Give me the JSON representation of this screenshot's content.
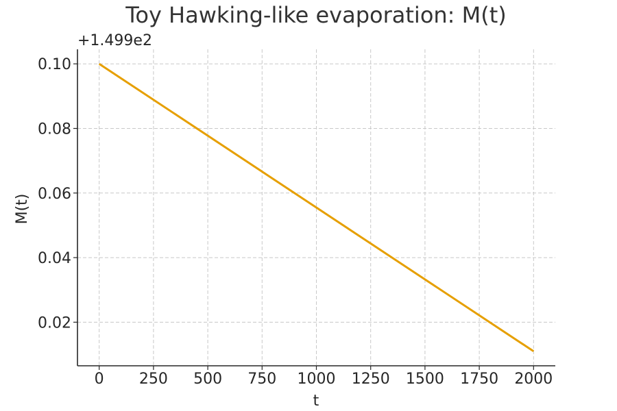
{
  "chart_data": {
    "type": "line",
    "title": "Toy Hawking-like evaporation: M(t)",
    "xlabel": "t",
    "ylabel": "M(t)",
    "y_offset_label": "+1.499e2",
    "xlim": [
      -100,
      2100
    ],
    "ylim": [
      0.0065,
      0.1045
    ],
    "x_ticks": [
      0,
      250,
      500,
      750,
      1000,
      1250,
      1500,
      1750,
      2000
    ],
    "x_tick_labels": [
      "0",
      "250",
      "500",
      "750",
      "1000",
      "1250",
      "1500",
      "1750",
      "2000"
    ],
    "y_ticks": [
      0.02,
      0.04,
      0.06,
      0.08,
      0.1
    ],
    "y_tick_labels": [
      "0.02",
      "0.04",
      "0.06",
      "0.08",
      "0.10"
    ],
    "grid": true,
    "series": [
      {
        "color": "#e69f00",
        "x": [
          0,
          2000
        ],
        "y": [
          0.1,
          0.011
        ]
      }
    ]
  }
}
